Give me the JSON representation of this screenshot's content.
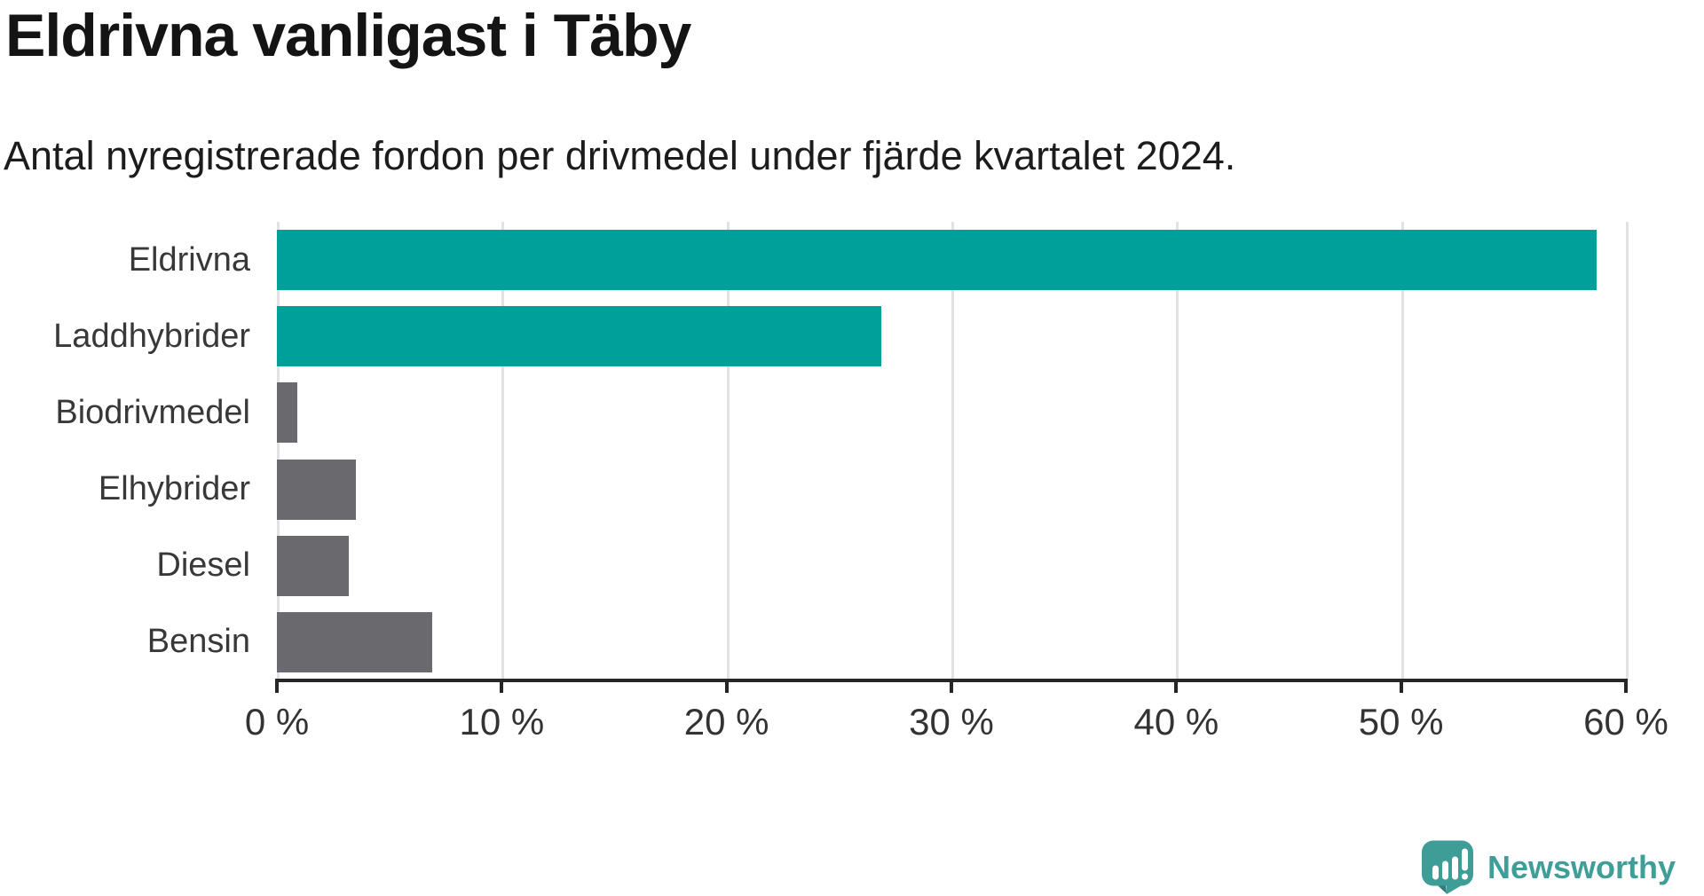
{
  "header": {
    "title": "Eldrivna vanligast i Täby",
    "subtitle": "Antal nyregistrerade fordon per drivmedel under fjärde kvartalet 2024."
  },
  "chart_data": {
    "type": "bar",
    "orientation": "horizontal",
    "title": "Eldrivna vanligast i Täby",
    "subtitle": "Antal nyregistrerade fordon per drivmedel under fjärde kvartalet 2024.",
    "categories": [
      "Eldrivna",
      "Laddhybrider",
      "Biodrivmedel",
      "Elhybrider",
      "Diesel",
      "Bensin"
    ],
    "values": [
      58.7,
      26.9,
      0.9,
      3.5,
      3.2,
      6.9
    ],
    "unit": "%",
    "xlabel": "",
    "ylabel": "",
    "xlim": [
      0,
      60
    ],
    "x_ticks": [
      0,
      10,
      20,
      30,
      40,
      50,
      60
    ],
    "x_tick_labels": [
      "0 %",
      "10 %",
      "20 %",
      "30 %",
      "40 %",
      "50 %",
      "60 %"
    ],
    "grid": true,
    "legend": "none",
    "bar_colors": [
      "#00a09a",
      "#00a09a",
      "#6a6a6e",
      "#6a6a6e",
      "#6a6a6e",
      "#6a6a6e"
    ],
    "highlight_color": "#00a09a",
    "default_color": "#6a6a6e",
    "gridline_color": "#e2e2e2",
    "axis_color": "#262626"
  },
  "branding": {
    "logo_text": "Newsworthy",
    "logo_text_color": "#3f9e98",
    "logo_icon": "newsworthy-speech-bubble-chart-icon",
    "logo_icon_color": "#3f9d97",
    "logo_icon_shadow_color": "#2e7d79"
  }
}
